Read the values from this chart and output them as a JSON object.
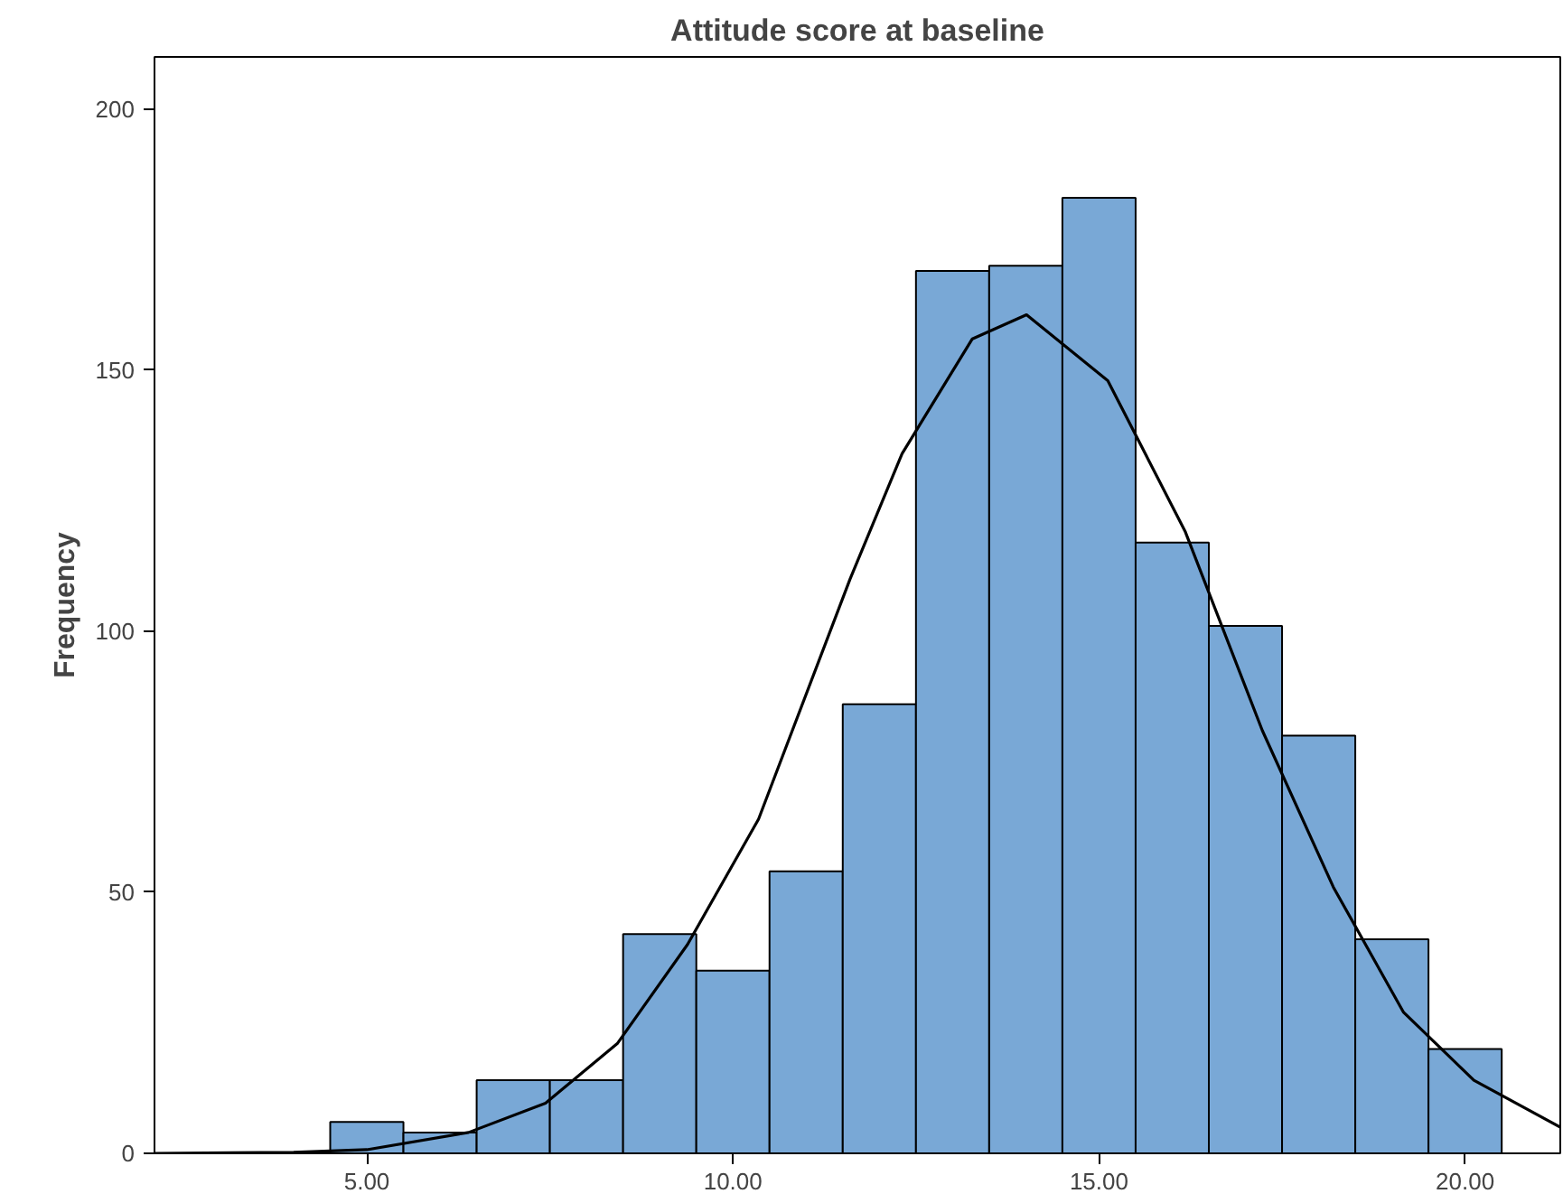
{
  "chart_data": {
    "type": "histogram",
    "title": "Attitude score at baseline",
    "ylabel": "Frequency",
    "bins": [
      4.5,
      5.5,
      6.5,
      7.5,
      8.5,
      9.5,
      10.5,
      11.5,
      12.5,
      13.5,
      14.5,
      15.5,
      16.5,
      17.5,
      18.5,
      19.5,
      20.5
    ],
    "values": [
      6,
      4,
      14,
      14,
      42,
      35,
      54,
      86,
      169,
      170,
      183,
      117,
      101,
      80,
      41,
      20
    ],
    "color": "#79a8d6",
    "series": [
      {
        "type": "line",
        "color": "#000000",
        "x": [
          2.1,
          4.0,
          5.0,
          6.39,
          7.44,
          8.42,
          9.38,
          10.35,
          11.6,
          12.31,
          13.27,
          14.01,
          15.12,
          16.18,
          17.23,
          18.2,
          19.16,
          20.12,
          21.3
        ],
        "values": [
          0,
          0.2,
          0.7,
          4,
          9.6,
          21,
          40,
          64,
          110,
          134,
          156,
          160.6,
          148,
          119,
          81,
          51,
          27,
          14,
          5
        ]
      }
    ],
    "xlim": [
      2.1,
      21.3
    ],
    "ylim": [
      0,
      210
    ],
    "xticks": [
      {
        "value": 5,
        "label": "5.00"
      },
      {
        "value": 10,
        "label": "10.00"
      },
      {
        "value": 15,
        "label": "15.00"
      },
      {
        "value": 20,
        "label": "20.00"
      }
    ],
    "yticks": [
      0,
      50,
      100,
      150,
      200
    ],
    "grid": false
  }
}
